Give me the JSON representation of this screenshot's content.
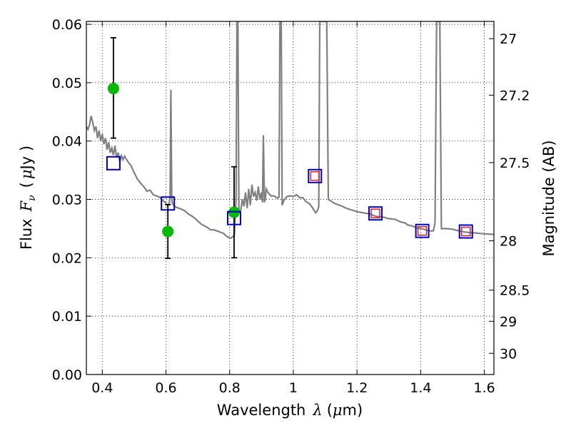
{
  "chart_data": {
    "type": "scatter",
    "title": "",
    "xlabel_prefix": "Wavelength",
    "xlabel_symbol": "λ",
    "xlabel_unit_open": "(",
    "xlabel_unit_mu": "μ",
    "xlabel_unit_close": "m)",
    "ylabel_prefix": "Flux",
    "ylabel_symbol": "F",
    "ylabel_subscript": "ν",
    "ylabel_unit_open": "(",
    "ylabel_unit_mu": "μ",
    "ylabel_unit_close": "Jy )",
    "y2label": "Magnitude (AB)",
    "xlim": [
      0.35,
      1.63
    ],
    "ylim": [
      0.0,
      0.0605
    ],
    "grid": true,
    "grid_style": "dotted",
    "x_ticks": [
      {
        "value": 0.4,
        "label": "0.4"
      },
      {
        "value": 0.6,
        "label": "0.6"
      },
      {
        "value": 0.8,
        "label": "0.8"
      },
      {
        "value": 1.0,
        "label": "1"
      },
      {
        "value": 1.2,
        "label": "1.2"
      },
      {
        "value": 1.4,
        "label": "1.4"
      },
      {
        "value": 1.6,
        "label": "1.6"
      }
    ],
    "y_ticks": [
      {
        "value": 0.0,
        "label": "0.00"
      },
      {
        "value": 0.01,
        "label": "0.01"
      },
      {
        "value": 0.02,
        "label": "0.02"
      },
      {
        "value": 0.03,
        "label": "0.03"
      },
      {
        "value": 0.04,
        "label": "0.04"
      },
      {
        "value": 0.05,
        "label": "0.05"
      },
      {
        "value": 0.06,
        "label": "0.06"
      }
    ],
    "y2_ticks": [
      {
        "value": 27.0,
        "label": "27"
      },
      {
        "value": 27.2,
        "label": "27.2"
      },
      {
        "value": 27.5,
        "label": "27.5"
      },
      {
        "value": 28.0,
        "label": "28"
      },
      {
        "value": 28.5,
        "label": "28.5"
      },
      {
        "value": 29.0,
        "label": "29"
      },
      {
        "value": 30.0,
        "label": "30"
      }
    ],
    "colors": {
      "spectrum": "#808080",
      "observed": "#00bb00",
      "errorbar": "#000000",
      "model_outer": "#0000cc",
      "model_inner": "#dd2222"
    },
    "series": [
      {
        "type": "line",
        "points": [
          [
            0.35,
            0.0425
          ],
          [
            0.355,
            0.042
          ],
          [
            0.36,
            0.0428
          ],
          [
            0.365,
            0.0443
          ],
          [
            0.37,
            0.0432
          ],
          [
            0.375,
            0.0418
          ],
          [
            0.38,
            0.0425
          ],
          [
            0.385,
            0.0405
          ],
          [
            0.39,
            0.0418
          ],
          [
            0.395,
            0.04
          ],
          [
            0.4,
            0.0412
          ],
          [
            0.405,
            0.0395
          ],
          [
            0.41,
            0.0405
          ],
          [
            0.415,
            0.0385
          ],
          [
            0.42,
            0.0398
          ],
          [
            0.425,
            0.038
          ],
          [
            0.43,
            0.0388
          ],
          [
            0.435,
            0.0376
          ],
          [
            0.44,
            0.0392
          ],
          [
            0.445,
            0.0372
          ],
          [
            0.45,
            0.038
          ],
          [
            0.455,
            0.0365
          ],
          [
            0.46,
            0.0375
          ],
          [
            0.465,
            0.0368
          ],
          [
            0.47,
            0.0374
          ],
          [
            0.48,
            0.0365
          ],
          [
            0.49,
            0.0358
          ],
          [
            0.5,
            0.0346
          ],
          [
            0.51,
            0.0335
          ],
          [
            0.52,
            0.0328
          ],
          [
            0.53,
            0.0322
          ],
          [
            0.54,
            0.0314
          ],
          [
            0.55,
            0.0316
          ],
          [
            0.56,
            0.0308
          ],
          [
            0.57,
            0.0306
          ],
          [
            0.58,
            0.0304
          ],
          [
            0.59,
            0.0298
          ],
          [
            0.6,
            0.0294
          ],
          [
            0.605,
            0.029
          ],
          [
            0.61,
            0.0292
          ],
          [
            0.613,
            0.0305
          ],
          [
            0.6155,
            0.0488
          ],
          [
            0.618,
            0.0305
          ],
          [
            0.62,
            0.0293
          ],
          [
            0.63,
            0.0287
          ],
          [
            0.64,
            0.0285
          ],
          [
            0.65,
            0.0283
          ],
          [
            0.66,
            0.028
          ],
          [
            0.67,
            0.0275
          ],
          [
            0.68,
            0.0272
          ],
          [
            0.69,
            0.0268
          ],
          [
            0.7,
            0.0263
          ],
          [
            0.71,
            0.0258
          ],
          [
            0.72,
            0.0255
          ],
          [
            0.73,
            0.0252
          ],
          [
            0.74,
            0.0248
          ],
          [
            0.75,
            0.0248
          ],
          [
            0.76,
            0.0246
          ],
          [
            0.77,
            0.0244
          ],
          [
            0.78,
            0.0242
          ],
          [
            0.79,
            0.0237
          ],
          [
            0.8,
            0.0234
          ],
          [
            0.805,
            0.0234
          ],
          [
            0.81,
            0.0236
          ],
          [
            0.815,
            0.024
          ],
          [
            0.82,
            0.03
          ],
          [
            0.823,
            0.0605
          ],
          [
            0.826,
            0.0605
          ],
          [
            0.829,
            0.028
          ],
          [
            0.835,
            0.0282
          ],
          [
            0.84,
            0.03
          ],
          [
            0.845,
            0.0288
          ],
          [
            0.85,
            0.0312
          ],
          [
            0.855,
            0.0285
          ],
          [
            0.86,
            0.0318
          ],
          [
            0.865,
            0.029
          ],
          [
            0.87,
            0.0325
          ],
          [
            0.875,
            0.0305
          ],
          [
            0.88,
            0.0312
          ],
          [
            0.885,
            0.0298
          ],
          [
            0.89,
            0.0322
          ],
          [
            0.895,
            0.03
          ],
          [
            0.9,
            0.0312
          ],
          [
            0.903,
            0.0295
          ],
          [
            0.906,
            0.041
          ],
          [
            0.909,
            0.0295
          ],
          [
            0.912,
            0.03
          ],
          [
            0.915,
            0.0318
          ],
          [
            0.92,
            0.0312
          ],
          [
            0.93,
            0.0306
          ],
          [
            0.94,
            0.0306
          ],
          [
            0.95,
            0.0302
          ],
          [
            0.955,
            0.0304
          ],
          [
            0.958,
            0.0605
          ],
          [
            0.962,
            0.0605
          ],
          [
            0.965,
            0.029
          ],
          [
            0.97,
            0.0298
          ],
          [
            0.98,
            0.0305
          ],
          [
            0.99,
            0.0306
          ],
          [
            1.0,
            0.0305
          ],
          [
            1.01,
            0.0308
          ],
          [
            1.02,
            0.0303
          ],
          [
            1.03,
            0.0303
          ],
          [
            1.04,
            0.0296
          ],
          [
            1.05,
            0.0293
          ],
          [
            1.06,
            0.0286
          ],
          [
            1.07,
            0.0277
          ],
          [
            1.075,
            0.028
          ],
          [
            1.08,
            0.0287
          ],
          [
            1.083,
            0.0605
          ],
          [
            1.09,
            0.0605
          ],
          [
            1.095,
            0.0605
          ],
          [
            1.1,
            0.0605
          ],
          [
            1.105,
            0.0605
          ],
          [
            1.11,
            0.03
          ],
          [
            1.13,
            0.0293
          ],
          [
            1.15,
            0.0289
          ],
          [
            1.17,
            0.0284
          ],
          [
            1.2,
            0.0279
          ],
          [
            1.22,
            0.0277
          ],
          [
            1.24,
            0.0275
          ],
          [
            1.26,
            0.0271
          ],
          [
            1.28,
            0.027
          ],
          [
            1.3,
            0.0267
          ],
          [
            1.32,
            0.0266
          ],
          [
            1.33,
            0.0263
          ],
          [
            1.34,
            0.0261
          ],
          [
            1.35,
            0.026
          ],
          [
            1.36,
            0.0256
          ],
          [
            1.37,
            0.0255
          ],
          [
            1.38,
            0.0253
          ],
          [
            1.39,
            0.0251
          ],
          [
            1.4,
            0.025
          ],
          [
            1.41,
            0.0249
          ],
          [
            1.42,
            0.0247
          ],
          [
            1.43,
            0.0246
          ],
          [
            1.44,
            0.0246
          ],
          [
            1.445,
            0.026
          ],
          [
            1.45,
            0.0605
          ],
          [
            1.46,
            0.0605
          ],
          [
            1.465,
            0.025
          ],
          [
            1.48,
            0.025
          ],
          [
            1.5,
            0.0249
          ],
          [
            1.52,
            0.0246
          ],
          [
            1.54,
            0.0244
          ],
          [
            1.56,
            0.0243
          ],
          [
            1.58,
            0.0242
          ],
          [
            1.6,
            0.0241
          ],
          [
            1.63,
            0.024
          ]
        ]
      },
      {
        "type": "scatter_errorbar",
        "points": [
          {
            "x": 0.435,
            "y": 0.049,
            "ylo": 0.0405,
            "yhi": 0.0577
          },
          {
            "x": 0.606,
            "y": 0.0245,
            "ylo": 0.0199,
            "yhi": 0.0291
          },
          {
            "x": 0.814,
            "y": 0.0278,
            "ylo": 0.02,
            "yhi": 0.0356
          }
        ]
      },
      {
        "type": "model_boxes",
        "points": [
          {
            "x": 0.435,
            "y": 0.0362,
            "inner": false
          },
          {
            "x": 0.606,
            "y": 0.0293,
            "inner": false
          },
          {
            "x": 0.814,
            "y": 0.0268,
            "inner": false
          },
          {
            "x": 1.068,
            "y": 0.034,
            "inner": true
          },
          {
            "x": 1.258,
            "y": 0.0276,
            "inner": true
          },
          {
            "x": 1.405,
            "y": 0.0246,
            "inner": true
          },
          {
            "x": 1.542,
            "y": 0.0245,
            "inner": true
          }
        ]
      }
    ]
  }
}
